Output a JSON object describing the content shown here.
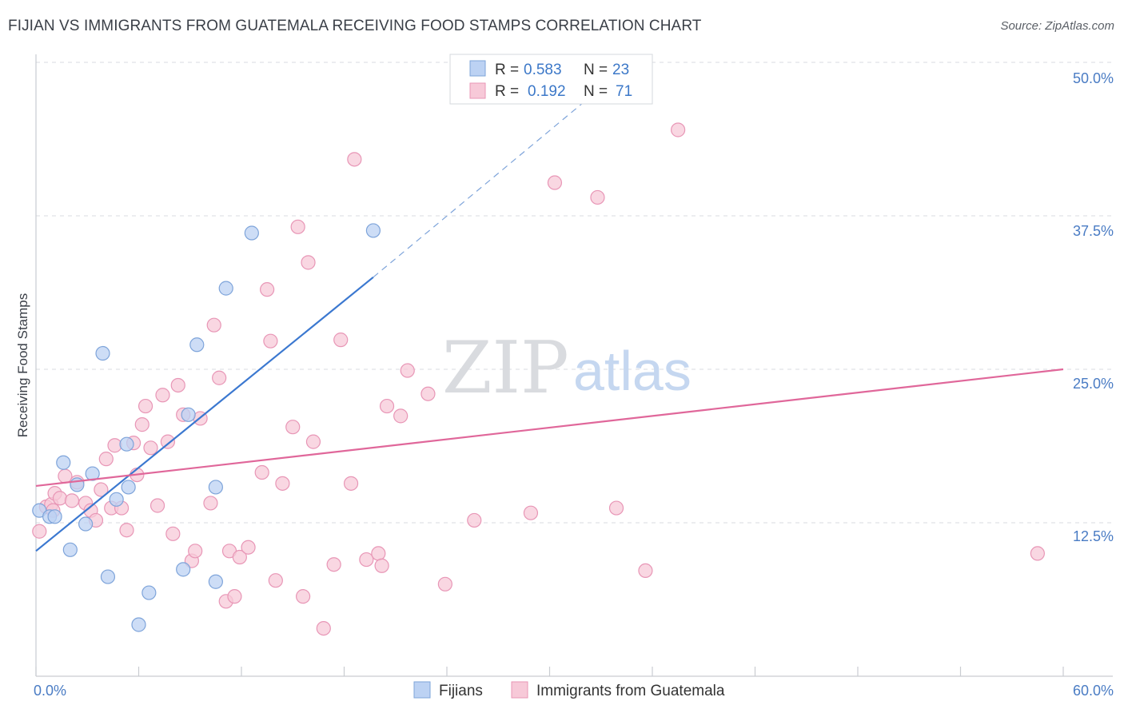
{
  "title": "FIJIAN VS IMMIGRANTS FROM GUATEMALA RECEIVING FOOD STAMPS CORRELATION CHART",
  "source": "Source: ZipAtlas.com",
  "watermark": {
    "zip": "ZIP",
    "atlas": "atlas"
  },
  "colors": {
    "blue": "#3b78d0",
    "blue_fill": "#bcd2f3",
    "blue_stroke": "#7ea4da",
    "pink": "#e0679a",
    "pink_fill": "#f7c9d8",
    "pink_stroke": "#e896b6",
    "axis_text": "#4a7cc4",
    "grid": "#d8dbe0"
  },
  "legend": {
    "rows": [
      {
        "r_label": "R =",
        "r_value": "0.583",
        "n_label": "N =",
        "n_value": "23"
      },
      {
        "r_label": "R =",
        "r_value": "0.192",
        "n_label": "N =",
        "n_value": "71"
      }
    ]
  },
  "chart_data": {
    "type": "scatter",
    "xlabel": "",
    "ylabel": "Receiving Food Stamps",
    "xlim": [
      0,
      60
    ],
    "ylim": [
      0,
      51
    ],
    "x_tick_labels": [
      "0.0%",
      "60.0%"
    ],
    "y_ticks": [
      12.5,
      25.0,
      37.5,
      50.0
    ],
    "y_tick_labels": [
      "12.5%",
      "25.0%",
      "37.5%",
      "50.0%"
    ],
    "grid": "horizontal dashed",
    "series": [
      {
        "name": "Fijians",
        "color": "blue",
        "points": [
          [
            0.2,
            13.5
          ],
          [
            0.8,
            13.0
          ],
          [
            1.1,
            13.0
          ],
          [
            1.6,
            17.4
          ],
          [
            2.0,
            10.3
          ],
          [
            2.4,
            15.6
          ],
          [
            2.9,
            12.4
          ],
          [
            3.3,
            16.5
          ],
          [
            3.9,
            26.3
          ],
          [
            4.2,
            8.1
          ],
          [
            4.7,
            14.4
          ],
          [
            5.3,
            18.9
          ],
          [
            5.4,
            15.4
          ],
          [
            6.0,
            4.2
          ],
          [
            6.6,
            6.8
          ],
          [
            8.6,
            8.7
          ],
          [
            8.9,
            21.3
          ],
          [
            9.4,
            27.0
          ],
          [
            10.5,
            15.4
          ],
          [
            10.5,
            7.7
          ],
          [
            11.1,
            31.6
          ],
          [
            12.6,
            36.1
          ],
          [
            19.7,
            36.3
          ]
        ],
        "trend": {
          "x0": 0,
          "y0": 10.2,
          "x1": 19.7,
          "y1": 32.5,
          "dash_to_x": 33.5,
          "dash_to_y": 48.5
        }
      },
      {
        "name": "Immigrants from Guatemala",
        "color": "pink",
        "points": [
          [
            0.2,
            11.8
          ],
          [
            0.6,
            13.8
          ],
          [
            0.9,
            14.0
          ],
          [
            1.1,
            14.9
          ],
          [
            1.4,
            14.5
          ],
          [
            1.7,
            16.3
          ],
          [
            2.1,
            14.3
          ],
          [
            2.4,
            15.8
          ],
          [
            2.9,
            14.1
          ],
          [
            3.2,
            13.5
          ],
          [
            3.5,
            12.7
          ],
          [
            3.8,
            15.2
          ],
          [
            4.1,
            17.7
          ],
          [
            4.4,
            13.7
          ],
          [
            4.6,
            18.8
          ],
          [
            5.0,
            13.7
          ],
          [
            5.3,
            11.9
          ],
          [
            5.7,
            19.0
          ],
          [
            5.9,
            16.4
          ],
          [
            6.2,
            20.5
          ],
          [
            6.4,
            22.0
          ],
          [
            6.7,
            18.6
          ],
          [
            7.1,
            13.9
          ],
          [
            7.4,
            22.9
          ],
          [
            7.7,
            19.1
          ],
          [
            8.0,
            11.6
          ],
          [
            8.3,
            23.7
          ],
          [
            8.6,
            21.3
          ],
          [
            9.1,
            9.4
          ],
          [
            9.3,
            10.2
          ],
          [
            9.6,
            21.0
          ],
          [
            10.2,
            14.1
          ],
          [
            10.4,
            28.6
          ],
          [
            10.7,
            24.3
          ],
          [
            11.1,
            6.1
          ],
          [
            11.3,
            10.2
          ],
          [
            11.6,
            6.5
          ],
          [
            11.9,
            9.7
          ],
          [
            12.4,
            10.5
          ],
          [
            13.2,
            16.6
          ],
          [
            13.5,
            31.5
          ],
          [
            13.7,
            27.3
          ],
          [
            14.0,
            7.8
          ],
          [
            14.4,
            15.7
          ],
          [
            15.0,
            20.3
          ],
          [
            15.3,
            36.6
          ],
          [
            15.6,
            6.5
          ],
          [
            15.9,
            33.7
          ],
          [
            16.2,
            19.1
          ],
          [
            16.8,
            3.9
          ],
          [
            17.4,
            9.1
          ],
          [
            17.8,
            27.4
          ],
          [
            18.4,
            15.7
          ],
          [
            18.6,
            42.1
          ],
          [
            19.3,
            9.5
          ],
          [
            20.0,
            10.0
          ],
          [
            20.2,
            9.0
          ],
          [
            20.5,
            22.0
          ],
          [
            21.3,
            21.2
          ],
          [
            21.7,
            24.9
          ],
          [
            22.9,
            23.0
          ],
          [
            23.9,
            7.5
          ],
          [
            25.6,
            12.7
          ],
          [
            28.9,
            13.3
          ],
          [
            30.3,
            40.2
          ],
          [
            32.8,
            39.0
          ],
          [
            33.9,
            13.7
          ],
          [
            35.6,
            8.6
          ],
          [
            37.5,
            44.5
          ],
          [
            58.5,
            10.0
          ],
          [
            1.0,
            13.5
          ]
        ],
        "trend": {
          "x0": 0,
          "y0": 15.5,
          "x1": 60,
          "y1": 25.0
        }
      }
    ]
  }
}
